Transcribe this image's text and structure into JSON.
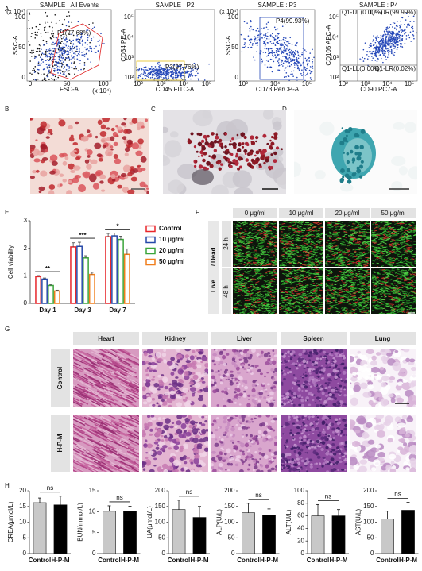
{
  "panel_labels": [
    "A",
    "B",
    "C",
    "D",
    "E",
    "F",
    "G",
    "H"
  ],
  "flow_panels": [
    {
      "title": "SAMPLE : All Events",
      "x_label": "FSC-A",
      "y_label": "SSC-A",
      "x_unit": "(x 10⁴)",
      "y_unit": "(x 10⁴)",
      "x_ticks": [
        "0",
        "50",
        "100"
      ],
      "y_ticks": [
        "0",
        "50",
        "100"
      ],
      "gates": [
        "P1(77.68%)"
      ]
    },
    {
      "title": "SAMPLE : P2",
      "x_label": "CD45 FITC-A",
      "y_label": "CD34 PE-A",
      "x_ticks": [
        "10²",
        "10³",
        "10⁴",
        "10⁵"
      ],
      "y_ticks": [
        "10²",
        "10³",
        "10⁴",
        "10⁵"
      ],
      "gates": [
        "P3(97.76%)"
      ]
    },
    {
      "title": "SAMPLE : P3",
      "x_label": "CD73 PerCP-A",
      "y_label": "SSC-A",
      "y_unit": "(x 10⁴)",
      "x_ticks": [
        "10³",
        "10⁴",
        "10⁵"
      ],
      "y_ticks": [
        "0",
        "50",
        "100"
      ],
      "gates": [
        "P4(99.93%)"
      ]
    },
    {
      "title": "SAMPLE : P4",
      "x_label": "CD90 PC7-A",
      "y_label": "CD105 APC-A",
      "x_ticks": [
        "10²",
        "10³",
        "10⁴",
        "10⁵"
      ],
      "y_ticks": [
        "10²",
        "10³",
        "10⁴",
        "10⁵"
      ],
      "gates": [
        "Q1-UL(0.00%)",
        "Q1-UR(99.99%)",
        "Q1-LL(0.00%)",
        "Q1-LR(0.02%)"
      ]
    }
  ],
  "live_dead": {
    "columns": [
      "0 μg/ml",
      "10 μg/ml",
      "20 μg/ml",
      "50 μg/ml"
    ],
    "rows": [
      "24 h",
      "48 h"
    ],
    "live": "Live",
    "separator": "/",
    "dead": "Dead"
  },
  "histology": {
    "columns": [
      "Heart",
      "Kidney",
      "Liver",
      "Spleen",
      "Lung"
    ],
    "rows": [
      "Control",
      "H-P-M"
    ]
  },
  "chart_data": [
    {
      "type": "bar",
      "ylabel": "Cell viability",
      "categories": [
        "Day 1",
        "Day 3",
        "Day 7"
      ],
      "series": [
        {
          "name": "Control",
          "color": "#e8262b",
          "values": [
            0.97,
            2.05,
            2.42
          ],
          "errors": [
            0.04,
            0.15,
            0.12
          ]
        },
        {
          "name": "10 μg/ml",
          "color": "#2548a8",
          "values": [
            0.88,
            2.07,
            2.45
          ],
          "errors": [
            0.04,
            0.15,
            0.1
          ]
        },
        {
          "name": "20 μg/ml",
          "color": "#3aa53a",
          "values": [
            0.65,
            1.65,
            2.32
          ],
          "errors": [
            0.04,
            0.08,
            0.12
          ]
        },
        {
          "name": "50 μg/ml",
          "color": "#f07e1c",
          "values": [
            0.45,
            1.05,
            1.78
          ],
          "errors": [
            0.03,
            0.08,
            0.2
          ]
        }
      ],
      "annotations": [
        "**",
        "***",
        "*"
      ],
      "ylim": [
        0,
        3
      ],
      "yticks": [
        0,
        1,
        2,
        3
      ],
      "legend": "right"
    },
    {
      "type": "bar",
      "ylabel": "CREA(μmol/L)",
      "categories": [
        "Control",
        "H-P-M"
      ],
      "values": [
        16.2,
        15.5
      ],
      "errors": [
        1.5,
        2.8
      ],
      "colors": [
        "#c8c8c8",
        "#000000"
      ],
      "annotation": "ns",
      "ylim": [
        0,
        20
      ],
      "yticks": [
        0,
        5,
        10,
        15,
        20
      ]
    },
    {
      "type": "bar",
      "ylabel": "BUN(mmol/L)",
      "categories": [
        "Control",
        "H-P-M"
      ],
      "values": [
        10.1,
        10.1
      ],
      "errors": [
        1.3,
        1.2
      ],
      "colors": [
        "#c8c8c8",
        "#000000"
      ],
      "annotation": "ns",
      "ylim": [
        0,
        15
      ],
      "yticks": [
        0,
        5,
        10,
        15
      ]
    },
    {
      "type": "bar",
      "ylabel": "UA(μmol/L)",
      "categories": [
        "Control",
        "H-P-M"
      ],
      "values": [
        140,
        115
      ],
      "errors": [
        30,
        35
      ],
      "colors": [
        "#c8c8c8",
        "#000000"
      ],
      "annotation": "ns",
      "ylim": [
        0,
        200
      ],
      "yticks": [
        0,
        50,
        100,
        150,
        200
      ]
    },
    {
      "type": "bar",
      "ylabel": "ALP(U/L)",
      "categories": [
        "Control",
        "H-P-M"
      ],
      "values": [
        130,
        122
      ],
      "errors": [
        30,
        20
      ],
      "colors": [
        "#c8c8c8",
        "#000000"
      ],
      "annotation": "ns",
      "ylim": [
        0,
        200
      ],
      "yticks": [
        0,
        50,
        100,
        150,
        200
      ]
    },
    {
      "type": "bar",
      "ylabel": "ALT(U/L)",
      "categories": [
        "Control",
        "H-P-M"
      ],
      "values": [
        60,
        60
      ],
      "errors": [
        18,
        10
      ],
      "colors": [
        "#c8c8c8",
        "#000000"
      ],
      "annotation": "ns",
      "ylim": [
        0,
        100
      ],
      "yticks": [
        0,
        20,
        40,
        60,
        80,
        100
      ]
    },
    {
      "type": "bar",
      "ylabel": "AST(U/L)",
      "categories": [
        "Control",
        "H-P-M"
      ],
      "values": [
        110,
        138
      ],
      "errors": [
        25,
        25
      ],
      "colors": [
        "#c8c8c8",
        "#000000"
      ],
      "annotation": "ns",
      "ylim": [
        0,
        200
      ],
      "yticks": [
        0,
        50,
        100,
        150,
        200
      ]
    }
  ]
}
